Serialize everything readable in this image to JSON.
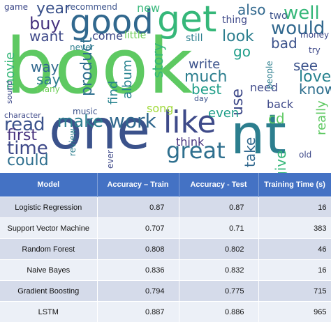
{
  "word_cloud": {
    "words": [
      {
        "text": "book",
        "color": "#5ec962"
      },
      {
        "text": "good",
        "color": "#31688e"
      },
      {
        "text": "get",
        "color": "#35b779"
      },
      {
        "text": "one",
        "color": "#3b528b"
      },
      {
        "text": "nt",
        "color": "#2c7e8e"
      },
      {
        "text": "like",
        "color": "#3e4a89"
      },
      {
        "text": "great",
        "color": "#2e6f8e"
      },
      {
        "text": "work",
        "color": "#31688e"
      },
      {
        "text": "make",
        "color": "#2c7e8e"
      },
      {
        "text": "time",
        "color": "#3e4989"
      },
      {
        "text": "read",
        "color": "#3b528b"
      },
      {
        "text": "first",
        "color": "#46327e"
      },
      {
        "text": "could",
        "color": "#2e6f8e"
      },
      {
        "text": "well",
        "color": "#35b779"
      },
      {
        "text": "would",
        "color": "#31688e"
      },
      {
        "text": "year",
        "color": "#3b528b"
      },
      {
        "text": "also",
        "color": "#31688e"
      },
      {
        "text": "buy",
        "color": "#46327e"
      },
      {
        "text": "want",
        "color": "#3e4989"
      },
      {
        "text": "look",
        "color": "#2c7e8e"
      },
      {
        "text": "bad",
        "color": "#3b528b"
      },
      {
        "text": "come",
        "color": "#3e4989"
      },
      {
        "text": "little",
        "color": "#6ece58"
      },
      {
        "text": "go",
        "color": "#1f9e89"
      },
      {
        "text": "way",
        "color": "#31688e"
      },
      {
        "text": "say",
        "color": "#2c7e8e"
      },
      {
        "text": "movie",
        "color": "#35b779"
      },
      {
        "text": "product",
        "color": "#2e6f8e"
      },
      {
        "text": "find",
        "color": "#26828e"
      },
      {
        "text": "album",
        "color": "#26828e"
      },
      {
        "text": "story",
        "color": "#35b779"
      },
      {
        "text": "write",
        "color": "#3b528b"
      },
      {
        "text": "much",
        "color": "#2c7e8e"
      },
      {
        "text": "best",
        "color": "#1f9e89"
      },
      {
        "text": "use",
        "color": "#3e4989"
      },
      {
        "text": "see",
        "color": "#3b528b"
      },
      {
        "text": "love",
        "color": "#26828e"
      },
      {
        "text": "know",
        "color": "#2e6f8e"
      },
      {
        "text": "song",
        "color": "#a0da39"
      },
      {
        "text": "even",
        "color": "#1f9e89"
      },
      {
        "text": "back",
        "color": "#3e4989"
      },
      {
        "text": "cd",
        "color": "#5ec962"
      },
      {
        "text": "take",
        "color": "#31688e"
      },
      {
        "text": "give",
        "color": "#35b779"
      },
      {
        "text": "really",
        "color": "#5ec962"
      },
      {
        "text": "think",
        "color": "#46327e"
      },
      {
        "text": "need",
        "color": "#3e4989"
      },
      {
        "text": "people",
        "color": "#2c7e8e"
      },
      {
        "text": "game",
        "color": "#3e4989"
      },
      {
        "text": "recommend",
        "color": "#3b528b"
      },
      {
        "text": "new",
        "color": "#35b779"
      },
      {
        "text": "thing",
        "color": "#3e4989"
      },
      {
        "text": "two",
        "color": "#3b528b"
      },
      {
        "text": "money",
        "color": "#3e4989"
      },
      {
        "text": "still",
        "color": "#2c7e8e"
      },
      {
        "text": "never",
        "color": "#2c7e8e"
      },
      {
        "text": "many",
        "color": "#6ece58"
      },
      {
        "text": "sound",
        "color": "#3e4989"
      },
      {
        "text": "music",
        "color": "#3b528b"
      },
      {
        "text": "day",
        "color": "#3b528b"
      },
      {
        "text": "character",
        "color": "#3e4989"
      },
      {
        "text": "review",
        "color": "#2c7e8e"
      },
      {
        "text": "ever",
        "color": "#3e4989"
      },
      {
        "text": "old",
        "color": "#3e4989"
      },
      {
        "text": "try",
        "color": "#3e4989"
      }
    ]
  },
  "table": {
    "headers": [
      "Model",
      "Accuracy – Train",
      "Accuracy - Test",
      "Training Time (s)"
    ],
    "rows": [
      [
        "Logistic Regression",
        "0.87",
        "0.87",
        "16"
      ],
      [
        "Support Vector Machine",
        "0.707",
        "0.71",
        "383"
      ],
      [
        "Random Forest",
        "0.808",
        "0.802",
        "46"
      ],
      [
        "Naive Bayes",
        "0.836",
        "0.832",
        "16"
      ],
      [
        "Gradient Boosting",
        "0.794",
        "0.775",
        "715"
      ],
      [
        "LSTM",
        "0.887",
        "0.886",
        "965"
      ]
    ]
  }
}
